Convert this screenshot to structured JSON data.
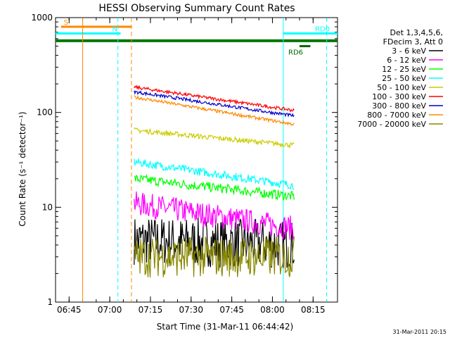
{
  "chart_data": {
    "type": "line",
    "title": "HESSI Observing Summary Count Rates",
    "xlabel": "Start Time (31-Mar-11 06:44:42)",
    "ylabel": "Count Rate (s⁻¹ detector⁻¹)",
    "y_scale": "log",
    "ylim": [
      1,
      1000
    ],
    "xlim": [
      "06:40",
      "08:24"
    ],
    "x_ticks": [
      "06:45",
      "07:00",
      "07:15",
      "07:30",
      "07:45",
      "08:00",
      "08:15"
    ],
    "y_ticks": [
      "1",
      "10",
      "100",
      "1000"
    ],
    "legend_header": [
      "Det 1,3,4,5,6,",
      "FDecim 3, Att 0"
    ],
    "legend_position": "right",
    "data_window": [
      "07:09",
      "08:08"
    ],
    "series": [
      {
        "name": "3 - 6 keV",
        "color": "#000000",
        "y_start": 4.5,
        "y_end": 4,
        "noise": 0.6
      },
      {
        "name": "6 - 12 keV",
        "color": "#ff00ff",
        "y_start": 11,
        "y_end": 6,
        "noise": 0.3
      },
      {
        "name": "12 - 25 keV",
        "color": "#00ff00",
        "y_start": 20,
        "y_end": 13,
        "noise": 0.12
      },
      {
        "name": "25 - 50 keV",
        "color": "#00ffff",
        "y_start": 30,
        "y_end": 17,
        "noise": 0.1
      },
      {
        "name": "50 - 100 keV",
        "color": "#cccc00",
        "y_start": 65,
        "y_end": 45,
        "noise": 0.06
      },
      {
        "name": "100 - 300 keV",
        "color": "#ff0000",
        "y_start": 185,
        "y_end": 105,
        "noise": 0.04
      },
      {
        "name": "300 - 800 keV",
        "color": "#0000cc",
        "y_start": 165,
        "y_end": 92,
        "noise": 0.04
      },
      {
        "name": "800 - 7000 keV",
        "color": "#ff8800",
        "y_start": 145,
        "y_end": 75,
        "noise": 0.04
      },
      {
        "name": "7000 - 20000 keV",
        "color": "#888800",
        "y_start": 3,
        "y_end": 3,
        "noise": 0.5
      }
    ],
    "annotations": [
      {
        "label": "S",
        "color": "#ff8800",
        "x_start": "06:42",
        "x_end": "07:08",
        "y": 800
      },
      {
        "label": "N",
        "color": "#00ffff",
        "x_start": "06:40",
        "x_end": "07:04",
        "y": 680
      },
      {
        "label": "RD0",
        "color": "#00ffff",
        "x_start": "08:04",
        "x_end": "08:24",
        "y": 680
      },
      {
        "label": "RD6",
        "color": "#006600",
        "x_start": "08:10",
        "x_end": "08:14",
        "y": 500
      }
    ],
    "green_band": {
      "color": "#007700",
      "y": 570
    },
    "vlines": [
      {
        "x": "06:50",
        "color": "#ff8800",
        "style": "solid"
      },
      {
        "x": "07:03",
        "color": "#00ffff",
        "style": "dashed"
      },
      {
        "x": "07:08",
        "color": "#ff8800",
        "style": "dashed"
      },
      {
        "x": "08:04",
        "color": "#00ffff",
        "style": "solid"
      },
      {
        "x": "08:20",
        "color": "#00ffff",
        "style": "dashed"
      }
    ]
  },
  "footer": {
    "timestamp": "31-Mar-2011 20:15"
  }
}
